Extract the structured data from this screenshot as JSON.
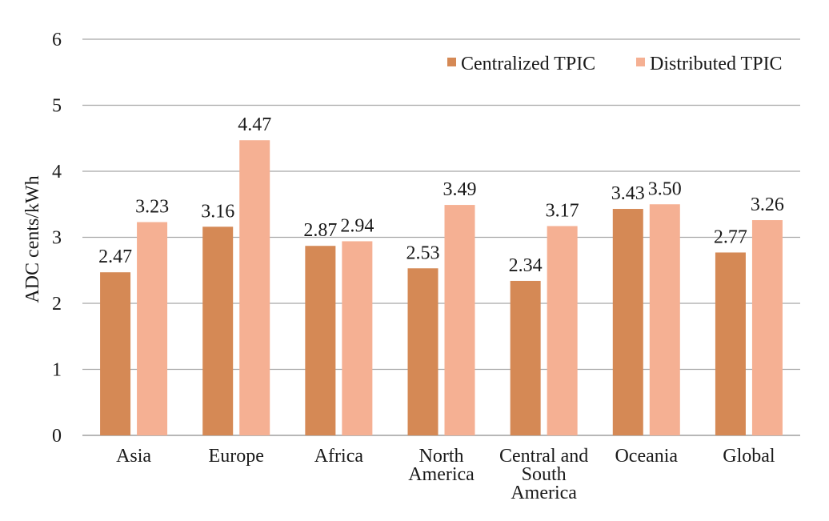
{
  "chart_data": {
    "type": "bar",
    "categories": [
      [
        "Asia"
      ],
      [
        "Europe"
      ],
      [
        "Africa"
      ],
      [
        "North",
        "America"
      ],
      [
        "Central and",
        "South",
        "America"
      ],
      [
        "Oceania"
      ],
      [
        "Global"
      ]
    ],
    "series": [
      {
        "name": "Centralized TPIC",
        "color": "#d58955",
        "values": [
          2.47,
          3.16,
          2.87,
          2.53,
          2.34,
          3.43,
          2.77
        ],
        "labels": [
          "2.47",
          "3.16",
          "2.87",
          "2.53",
          "2.34",
          "3.43",
          "2.77"
        ]
      },
      {
        "name": "Distributed TPIC",
        "color": "#f5b093",
        "values": [
          3.23,
          4.47,
          2.94,
          3.49,
          3.17,
          3.5,
          3.26
        ],
        "labels": [
          "3.23",
          "4.47",
          "2.94",
          "3.49",
          "3.17",
          "3.50",
          "3.26"
        ]
      }
    ],
    "title": "",
    "xlabel": "",
    "ylabel": "ADC cents/kWh",
    "ylim": [
      0,
      6
    ],
    "yticks": [
      0,
      1,
      2,
      3,
      4,
      5,
      6
    ],
    "grid": true,
    "legend_position": "top-right"
  }
}
